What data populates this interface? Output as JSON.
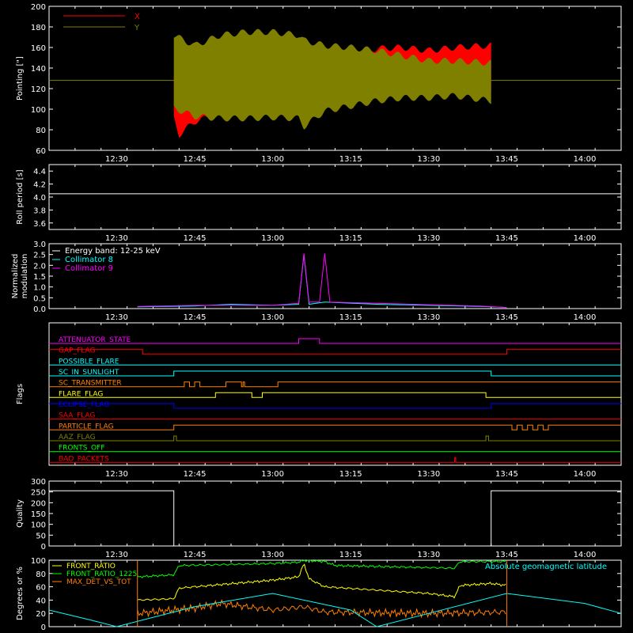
{
  "time_axis": {
    "start": "12:17",
    "end": "14:07",
    "tick_labels": [
      "12:30",
      "12:45",
      "13:00",
      "13:15",
      "13:30",
      "13:45",
      "14:00"
    ]
  },
  "colors": {
    "background": "#000000",
    "axes": "#ffffff",
    "red": "#ff0000",
    "olive": "#808000",
    "cyan": "#00ffff",
    "magenta": "#ff00ff",
    "green": "#00ff00",
    "yellow": "#ffff00",
    "orange": "#ff8000",
    "blue": "#0000ff",
    "white": "#ffffff"
  },
  "chart_data": [
    {
      "id": "pointing",
      "type": "line",
      "ylabel": "Pointing [\"]",
      "ylim": [
        60,
        200
      ],
      "yticks": [
        60,
        80,
        100,
        120,
        140,
        160,
        180,
        200
      ],
      "legend": [
        {
          "label": "X",
          "color": "#ff0000"
        },
        {
          "label": "Y",
          "color": "#808000"
        }
      ],
      "flat_value": 128,
      "active_start": "12:41",
      "active_end": "13:42",
      "series": [
        {
          "name": "X",
          "color": "#ff0000",
          "upper": [
            [
              "12:41",
              138
            ],
            [
              "12:45",
              148
            ],
            [
              "12:50",
              153
            ],
            [
              "12:55",
              157
            ],
            [
              "13:00",
              160
            ],
            [
              "13:05",
              162
            ],
            [
              "13:06",
              140
            ],
            [
              "13:10",
              150
            ],
            [
              "13:15",
              155
            ],
            [
              "13:20",
              162
            ],
            [
              "13:25",
              163
            ],
            [
              "13:30",
              160
            ],
            [
              "13:35",
              163
            ],
            [
              "13:42",
              165
            ]
          ],
          "lower": [
            [
              "12:41",
              88
            ],
            [
              "12:42",
              72
            ],
            [
              "12:45",
              85
            ],
            [
              "12:50",
              93
            ],
            [
              "12:55",
              95
            ],
            [
              "13:00",
              97
            ],
            [
              "13:05",
              96
            ],
            [
              "13:06",
              115
            ],
            [
              "13:10",
              120
            ],
            [
              "13:15",
              118
            ],
            [
              "13:20",
              118
            ],
            [
              "13:25",
              118
            ],
            [
              "13:30",
              120
            ],
            [
              "13:35",
              120
            ],
            [
              "13:42",
              118
            ]
          ]
        },
        {
          "name": "Y",
          "color": "#808000",
          "upper": [
            [
              "12:41",
              175
            ],
            [
              "12:45",
              165
            ],
            [
              "12:50",
              175
            ],
            [
              "12:55",
              178
            ],
            [
              "13:00",
              178
            ],
            [
              "13:05",
              175
            ],
            [
              "13:06",
              170
            ],
            [
              "13:10",
              165
            ],
            [
              "13:15",
              163
            ],
            [
              "13:20",
              160
            ],
            [
              "13:25",
              155
            ],
            [
              "13:30",
              150
            ],
            [
              "13:35",
              150
            ],
            [
              "13:42",
              148
            ]
          ],
          "lower": [
            [
              "12:41",
              98
            ],
            [
              "12:45",
              90
            ],
            [
              "12:50",
              88
            ],
            [
              "12:55",
              88
            ],
            [
              "13:00",
              89
            ],
            [
              "13:05",
              88
            ],
            [
              "13:06",
              80
            ],
            [
              "13:10",
              95
            ],
            [
              "13:15",
              100
            ],
            [
              "13:20",
              105
            ],
            [
              "13:25",
              108
            ],
            [
              "13:30",
              108
            ],
            [
              "13:35",
              110
            ],
            [
              "13:42",
              105
            ]
          ]
        }
      ]
    },
    {
      "id": "roll_period",
      "type": "line",
      "ylabel": "Roll period [s]",
      "ylim": [
        3.5,
        4.5
      ],
      "yticks": [
        3.6,
        3.8,
        4.0,
        4.2,
        4.4
      ],
      "series": [
        {
          "name": "",
          "color": "#ffffff",
          "points": [
            [
              "12:17",
              4.05
            ],
            [
              "14:07",
              4.05
            ]
          ]
        }
      ]
    },
    {
      "id": "modulation",
      "type": "line",
      "ylabel": "Normalized modulation",
      "ylim": [
        0,
        3.0
      ],
      "yticks": [
        0.0,
        0.5,
        1.0,
        1.5,
        2.0,
        2.5,
        3.0
      ],
      "legend": [
        {
          "label": "Energy band: 12-25 keV",
          "color": "#ffffff"
        },
        {
          "label": "Collimator 8",
          "color": "#00ffff"
        },
        {
          "label": "Collimator 9",
          "color": "#ff00ff"
        }
      ],
      "series": [
        {
          "name": "Collimator 8",
          "color": "#00ffff",
          "points": [
            [
              "12:34",
              0.08
            ],
            [
              "12:45",
              0.12
            ],
            [
              "12:52",
              0.2
            ],
            [
              "13:00",
              0.15
            ],
            [
              "13:05",
              0.2
            ],
            [
              "13:06",
              2.5
            ],
            [
              "13:07",
              0.2
            ],
            [
              "13:10",
              0.3
            ],
            [
              "13:20",
              0.2
            ],
            [
              "13:30",
              0.15
            ],
            [
              "13:40",
              0.1
            ],
            [
              "13:45",
              0.05
            ]
          ]
        },
        {
          "name": "Collimator 9",
          "color": "#ff00ff",
          "points": [
            [
              "12:34",
              0.1
            ],
            [
              "12:45",
              0.15
            ],
            [
              "13:00",
              0.15
            ],
            [
              "13:05",
              0.25
            ],
            [
              "13:06",
              2.55
            ],
            [
              "13:07",
              0.3
            ],
            [
              "13:09",
              0.3
            ],
            [
              "13:10",
              2.55
            ],
            [
              "13:11",
              0.3
            ],
            [
              "13:20",
              0.25
            ],
            [
              "13:30",
              0.18
            ],
            [
              "13:40",
              0.12
            ],
            [
              "13:45",
              0.05
            ]
          ]
        }
      ]
    },
    {
      "id": "flags",
      "type": "line",
      "ylabel": "Flags",
      "series": [
        {
          "name": "ATTENUATOR_STATE",
          "color": "#ff00ff",
          "transitions": [
            "13:05",
            "13:09"
          ],
          "initial": 0
        },
        {
          "name": "GAP_FLAG",
          "color": "#ff0000",
          "transitions": [
            "12:35",
            "13:45"
          ],
          "initial": 1
        },
        {
          "name": "POSSIBLE_FLARE",
          "color": "#00ffff",
          "transitions": [],
          "initial": 0
        },
        {
          "name": "SC_IN_SUNLIGHT",
          "color": "#00ffff",
          "transitions": [
            "12:41",
            "13:42"
          ],
          "initial": 0
        },
        {
          "name": "SC_TRANSMITTER",
          "color": "#ff8000",
          "transitions": [
            "12:43",
            "12:44",
            "12:45",
            "12:46",
            "12:51",
            "12:54",
            "12:54.3",
            "12:54.6",
            "13:01"
          ],
          "initial": 0
        },
        {
          "name": "FLARE_FLAG",
          "color": "#ffff00",
          "transitions": [
            "12:49",
            "12:56",
            "12:58",
            "13:41"
          ],
          "initial": 0
        },
        {
          "name": "ECLIPSE_FLAG",
          "color": "#0000ff",
          "transitions": [
            "12:41",
            "13:42"
          ],
          "initial": 1
        },
        {
          "name": "SAA_FLAG",
          "color": "#ff0000",
          "transitions": [],
          "initial": 0
        },
        {
          "name": "PARTICLE_FLAG",
          "color": "#ff8000",
          "transitions": [
            "12:41",
            "13:46",
            "13:47",
            "13:48",
            "13:49",
            "13:50",
            "13:51",
            "13:52",
            "13:53"
          ],
          "initial": 0
        },
        {
          "name": "AAZ_FLAG",
          "color": "#808000",
          "transitions": [
            "12:41",
            "12:41.5",
            "13:41",
            "13:41.5"
          ],
          "initial": 0
        },
        {
          "name": "FRONTS_OFF",
          "color": "#00ff00",
          "transitions": [],
          "initial": 0
        },
        {
          "name": "BAD_PACKETS",
          "color": "#ff0000",
          "transitions": [
            "13:35",
            "13:35.2"
          ],
          "initial": 0
        }
      ]
    },
    {
      "id": "quality",
      "type": "line",
      "ylabel": "Quality",
      "ylim": [
        0,
        300
      ],
      "yticks": [
        0,
        50,
        100,
        150,
        200,
        250,
        300
      ],
      "series": [
        {
          "name": "",
          "color": "#ffffff",
          "points": [
            [
              "12:17",
              255
            ],
            [
              "12:41",
              255
            ],
            [
              "12:41",
              0
            ],
            [
              "13:42",
              0
            ],
            [
              "13:42",
              255
            ],
            [
              "14:07",
              255
            ]
          ]
        }
      ]
    },
    {
      "id": "geomag",
      "type": "line",
      "ylabel": "Degrees or %",
      "ylim": [
        0,
        100
      ],
      "yticks": [
        0,
        20,
        40,
        60,
        80,
        100
      ],
      "legend": [
        {
          "label": "FRONT_RATIO",
          "color": "#ffff00"
        },
        {
          "label": "FRONT_RATIO_1225",
          "color": "#00ff00"
        },
        {
          "label": "MAX_DET_VS_TOT",
          "color": "#ff8000"
        },
        {
          "label": "Absolute geomagnetic latitude",
          "color": "#00ffff"
        }
      ],
      "series": [
        {
          "name": "FRONT_RATIO",
          "color": "#ffff00",
          "points": [
            [
              "12:34",
              40
            ],
            [
              "12:41",
              42
            ],
            [
              "12:42",
              58
            ],
            [
              "12:45",
              60
            ],
            [
              "13:00",
              70
            ],
            [
              "13:05",
              75
            ],
            [
              "13:06",
              95
            ],
            [
              "13:07",
              72
            ],
            [
              "13:10",
              60
            ],
            [
              "13:20",
              55
            ],
            [
              "13:30",
              50
            ],
            [
              "13:35",
              45
            ],
            [
              "13:36",
              62
            ],
            [
              "13:42",
              65
            ],
            [
              "13:45",
              62
            ]
          ]
        },
        {
          "name": "FRONT_RATIO_1225",
          "color": "#00ff00",
          "points": [
            [
              "12:34",
              75
            ],
            [
              "12:41",
              78
            ],
            [
              "12:42",
              92
            ],
            [
              "13:00",
              95
            ],
            [
              "13:05",
              97
            ],
            [
              "13:06",
              100
            ],
            [
              "13:10",
              98
            ],
            [
              "13:12",
              92
            ],
            [
              "13:35",
              88
            ],
            [
              "13:36",
              98
            ],
            [
              "13:45",
              98
            ]
          ]
        },
        {
          "name": "MAX_DET_VS_TOT",
          "color": "#ff8000",
          "points": [
            [
              "12:34",
              20
            ],
            [
              "12:45",
              28
            ],
            [
              "12:50",
              35
            ],
            [
              "13:00",
              25
            ],
            [
              "13:06",
              30
            ],
            [
              "13:10",
              22
            ],
            [
              "13:30",
              20
            ],
            [
              "13:45",
              22
            ]
          ]
        },
        {
          "name": "Absolute geomagnetic latitude",
          "color": "#00ffff",
          "points": [
            [
              "12:17",
              25
            ],
            [
              "12:25",
              10
            ],
            [
              "12:30",
              0
            ],
            [
              "12:45",
              30
            ],
            [
              "13:00",
              50
            ],
            [
              "13:15",
              25
            ],
            [
              "13:20",
              0
            ],
            [
              "13:30",
              20
            ],
            [
              "13:45",
              50
            ],
            [
              "14:00",
              35
            ],
            [
              "14:07",
              20
            ]
          ]
        }
      ]
    }
  ]
}
